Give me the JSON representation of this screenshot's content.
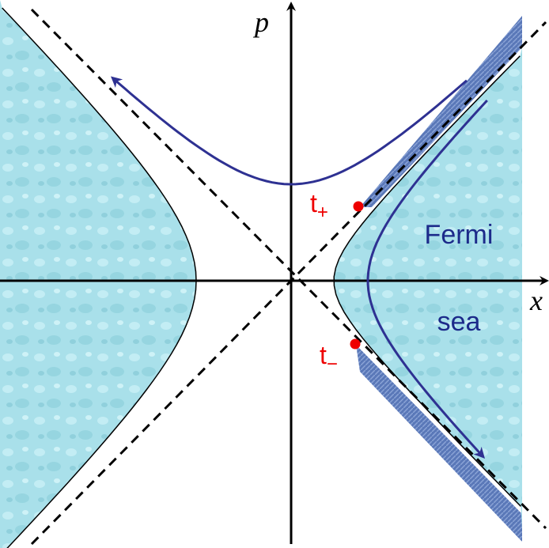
{
  "axes": {
    "p": "p",
    "x": "x"
  },
  "points": [
    {
      "base": "t",
      "sub": "+"
    },
    {
      "base": "t",
      "sub": "−"
    }
  ],
  "region_label": [
    "Fermi",
    "sea"
  ]
}
